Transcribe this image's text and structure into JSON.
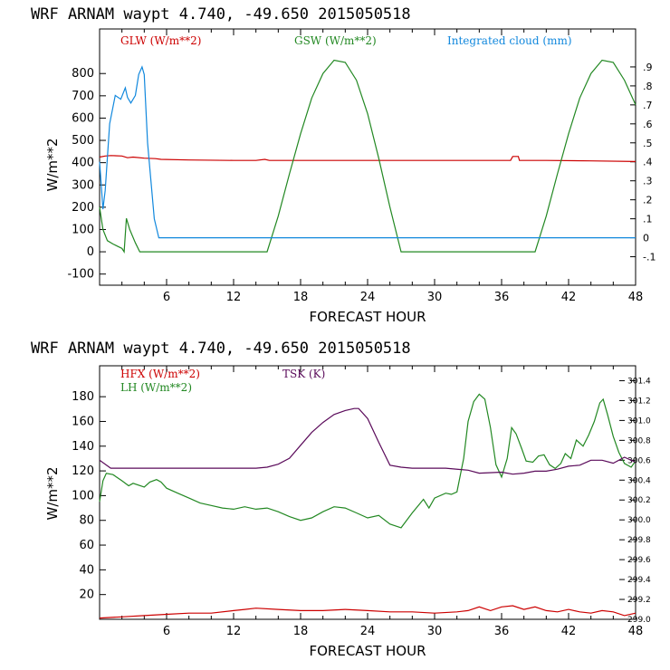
{
  "chart_data": [
    {
      "type": "line",
      "title": "WRF   ARNAM waypt     4.740, -49.650  2015050518",
      "xlabel": "FORECAST HOUR",
      "ylabel": "W/m**2",
      "xlim": [
        0,
        48
      ],
      "ylim": [
        -150,
        1000
      ],
      "x_ticks": [
        6,
        12,
        18,
        24,
        30,
        36,
        42,
        48
      ],
      "y_ticks": [
        -100,
        0,
        100,
        200,
        300,
        400,
        500,
        600,
        700,
        800
      ],
      "y2_lim": [
        -0.25,
        1.1
      ],
      "y2_ticks": [
        -0.1,
        0,
        0.1,
        0.2,
        0.3,
        0.4,
        0.5,
        0.6,
        0.7,
        0.8,
        0.9
      ],
      "y2_tick_labels": [
        "-.1",
        "0",
        ".1",
        ".2",
        ".3",
        ".4",
        ".5",
        ".6",
        ".7",
        ".8",
        ".9"
      ],
      "colors": {
        "GLW": "#cc0000",
        "GSW": "#228822",
        "CLOUD": "#1188dd"
      },
      "series": [
        {
          "key": "GLW",
          "name": "GLW (W/m**2)",
          "axis": "left",
          "points": [
            [
              0,
              425
            ],
            [
              0.5,
              430
            ],
            [
              1,
              432
            ],
            [
              2,
              430
            ],
            [
              2.5,
              422
            ],
            [
              3,
              425
            ],
            [
              4,
              420
            ],
            [
              5,
              418
            ],
            [
              5.5,
              415
            ],
            [
              8,
              412
            ],
            [
              12,
              410
            ],
            [
              14,
              410
            ],
            [
              14.8,
              415
            ],
            [
              15.2,
              410
            ],
            [
              20,
              410
            ],
            [
              26,
              410
            ],
            [
              30,
              410
            ],
            [
              36,
              410
            ],
            [
              36.8,
              410
            ],
            [
              37,
              428
            ],
            [
              37.5,
              428
            ],
            [
              37.6,
              410
            ],
            [
              40,
              410
            ],
            [
              44,
              408
            ],
            [
              48,
              405
            ]
          ]
        },
        {
          "key": "GSW",
          "name": "GSW (W/m**2)",
          "axis": "left",
          "points": [
            [
              0,
              200
            ],
            [
              0.3,
              100
            ],
            [
              0.7,
              50
            ],
            [
              1.2,
              35
            ],
            [
              1.6,
              25
            ],
            [
              2,
              15
            ],
            [
              2.2,
              0
            ],
            [
              2.4,
              150
            ],
            [
              2.7,
              100
            ],
            [
              3.2,
              40
            ],
            [
              3.6,
              0
            ],
            [
              15,
              0
            ],
            [
              16,
              160
            ],
            [
              17,
              350
            ],
            [
              18,
              530
            ],
            [
              19,
              690
            ],
            [
              20,
              800
            ],
            [
              21,
              860
            ],
            [
              22,
              850
            ],
            [
              23,
              770
            ],
            [
              24,
              620
            ],
            [
              25,
              420
            ],
            [
              26,
              200
            ],
            [
              27,
              0
            ],
            [
              39,
              0
            ],
            [
              40,
              160
            ],
            [
              41,
              350
            ],
            [
              42,
              530
            ],
            [
              43,
              690
            ],
            [
              44,
              800
            ],
            [
              45,
              860
            ],
            [
              46,
              850
            ],
            [
              47,
              770
            ],
            [
              48,
              660
            ]
          ]
        },
        {
          "key": "CLOUD",
          "name": "Integrated cloud (mm)",
          "axis": "right",
          "points": [
            [
              0,
              0.4
            ],
            [
              0.3,
              0.15
            ],
            [
              0.5,
              0.25
            ],
            [
              0.9,
              0.6
            ],
            [
              1.4,
              0.75
            ],
            [
              1.9,
              0.73
            ],
            [
              2.3,
              0.79
            ],
            [
              2.5,
              0.74
            ],
            [
              2.8,
              0.71
            ],
            [
              3.2,
              0.75
            ],
            [
              3.5,
              0.86
            ],
            [
              3.8,
              0.9
            ],
            [
              4,
              0.86
            ],
            [
              4.3,
              0.5
            ],
            [
              4.6,
              0.3
            ],
            [
              4.9,
              0.1
            ],
            [
              5.3,
              0
            ],
            [
              48,
              0
            ]
          ]
        }
      ]
    },
    {
      "type": "line",
      "title": "WRF   ARNAM waypt     4.740, -49.650  2015050518",
      "xlabel": "FORECAST HOUR",
      "ylabel": "W/m**2",
      "xlim": [
        0,
        48
      ],
      "ylim": [
        0,
        205
      ],
      "x_ticks": [
        6,
        12,
        18,
        24,
        30,
        36,
        42,
        48
      ],
      "y_ticks": [
        20,
        40,
        60,
        80,
        100,
        120,
        140,
        160,
        180
      ],
      "y2_lim": [
        299.0,
        301.55
      ],
      "y2_ticks": [
        299.0,
        299.2,
        299.4,
        299.6,
        299.8,
        300.0,
        300.2,
        300.4,
        300.6,
        300.8,
        301.0,
        301.2,
        301.4
      ],
      "y2_tick_labels": [
        "299.0",
        "299.2",
        "299.4",
        "299.6",
        "299.8",
        "300.0",
        "300.2",
        "300.4",
        "300.6",
        "300.8",
        "301.0",
        "301.2",
        "301.4"
      ],
      "colors": {
        "HFX": "#cc0000",
        "LH": "#228822",
        "TSK": "#5a0a5a"
      },
      "series": [
        {
          "key": "HFX",
          "name": "HFX (W/m**2)",
          "axis": "left",
          "points": [
            [
              0,
              1
            ],
            [
              2,
              2
            ],
            [
              4,
              3
            ],
            [
              6,
              4
            ],
            [
              8,
              5
            ],
            [
              10,
              5
            ],
            [
              12,
              7
            ],
            [
              13,
              8
            ],
            [
              14,
              9
            ],
            [
              16,
              8
            ],
            [
              18,
              7
            ],
            [
              20,
              7
            ],
            [
              22,
              8
            ],
            [
              24,
              7
            ],
            [
              26,
              6
            ],
            [
              28,
              6
            ],
            [
              30,
              5
            ],
            [
              32,
              6
            ],
            [
              33,
              7
            ],
            [
              34,
              10
            ],
            [
              35,
              7
            ],
            [
              36,
              10
            ],
            [
              37,
              11
            ],
            [
              38,
              8
            ],
            [
              39,
              10
            ],
            [
              40,
              7
            ],
            [
              41,
              6
            ],
            [
              42,
              8
            ],
            [
              43,
              6
            ],
            [
              44,
              5
            ],
            [
              45,
              7
            ],
            [
              46,
              6
            ],
            [
              47,
              3
            ],
            [
              48,
              5
            ]
          ]
        },
        {
          "key": "LH",
          "name": "LH  (W/m**2)",
          "axis": "left",
          "points": [
            [
              0,
              95
            ],
            [
              0.3,
              112
            ],
            [
              0.6,
              118
            ],
            [
              1.2,
              117
            ],
            [
              2,
              112
            ],
            [
              2.6,
              108
            ],
            [
              3,
              110
            ],
            [
              4,
              107
            ],
            [
              4.5,
              111
            ],
            [
              5.1,
              113
            ],
            [
              5.5,
              111
            ],
            [
              6,
              106
            ],
            [
              7,
              102
            ],
            [
              8,
              98
            ],
            [
              9,
              94
            ],
            [
              10,
              92
            ],
            [
              11,
              90
            ],
            [
              12,
              89
            ],
            [
              13,
              91
            ],
            [
              14,
              89
            ],
            [
              15,
              90
            ],
            [
              16,
              87
            ],
            [
              17,
              83
            ],
            [
              18,
              80
            ],
            [
              19,
              82
            ],
            [
              20,
              87
            ],
            [
              21,
              91
            ],
            [
              22,
              90
            ],
            [
              23,
              86
            ],
            [
              24,
              82
            ],
            [
              25,
              84
            ],
            [
              26,
              77
            ],
            [
              27,
              74
            ],
            [
              28,
              86
            ],
            [
              29,
              97
            ],
            [
              29.5,
              90
            ],
            [
              30,
              98
            ],
            [
              31,
              102
            ],
            [
              31.5,
              101
            ],
            [
              32,
              103
            ],
            [
              32.6,
              130
            ],
            [
              33,
              160
            ],
            [
              33.5,
              176
            ],
            [
              34,
              182
            ],
            [
              34.5,
              178
            ],
            [
              35,
              155
            ],
            [
              35.5,
              125
            ],
            [
              36,
              115
            ],
            [
              36.5,
              130
            ],
            [
              36.9,
              155
            ],
            [
              37.3,
              150
            ],
            [
              37.8,
              138
            ],
            [
              38.2,
              128
            ],
            [
              38.8,
              127
            ],
            [
              39.3,
              132
            ],
            [
              39.8,
              133
            ],
            [
              40.3,
              125
            ],
            [
              40.8,
              122
            ],
            [
              41.3,
              126
            ],
            [
              41.7,
              134
            ],
            [
              42.2,
              130
            ],
            [
              42.7,
              145
            ],
            [
              43.3,
              140
            ],
            [
              43.8,
              149
            ],
            [
              44.3,
              160
            ],
            [
              44.8,
              175
            ],
            [
              45.1,
              178
            ],
            [
              45.5,
              165
            ],
            [
              46,
              148
            ],
            [
              46.5,
              135
            ],
            [
              47,
              126
            ],
            [
              47.6,
              123
            ],
            [
              48,
              128
            ]
          ]
        },
        {
          "key": "TSK",
          "name": "TSK (K)",
          "axis": "right",
          "points": [
            [
              0,
              300.6
            ],
            [
              1,
              300.52
            ],
            [
              2,
              300.52
            ],
            [
              4,
              300.52
            ],
            [
              5,
              300.52
            ],
            [
              6,
              300.52
            ],
            [
              12,
              300.52
            ],
            [
              14,
              300.52
            ],
            [
              15,
              300.53
            ],
            [
              16,
              300.56
            ],
            [
              17,
              300.62
            ],
            [
              18,
              300.75
            ],
            [
              19,
              300.88
            ],
            [
              20,
              300.98
            ],
            [
              21,
              301.06
            ],
            [
              22,
              301.1
            ],
            [
              22.8,
              301.12
            ],
            [
              23.2,
              301.12
            ],
            [
              24,
              301.02
            ],
            [
              25,
              300.78
            ],
            [
              26,
              300.55
            ],
            [
              27,
              300.53
            ],
            [
              28,
              300.52
            ],
            [
              30,
              300.52
            ],
            [
              31,
              300.52
            ],
            [
              33,
              300.5
            ],
            [
              34,
              300.47
            ],
            [
              36,
              300.48
            ],
            [
              37,
              300.46
            ],
            [
              38,
              300.47
            ],
            [
              39,
              300.49
            ],
            [
              40,
              300.49
            ],
            [
              41,
              300.51
            ],
            [
              42,
              300.54
            ],
            [
              43,
              300.55
            ],
            [
              44,
              300.6
            ],
            [
              45,
              300.6
            ],
            [
              46,
              300.57
            ],
            [
              47,
              300.63
            ],
            [
              48,
              300.58
            ]
          ]
        }
      ]
    }
  ]
}
